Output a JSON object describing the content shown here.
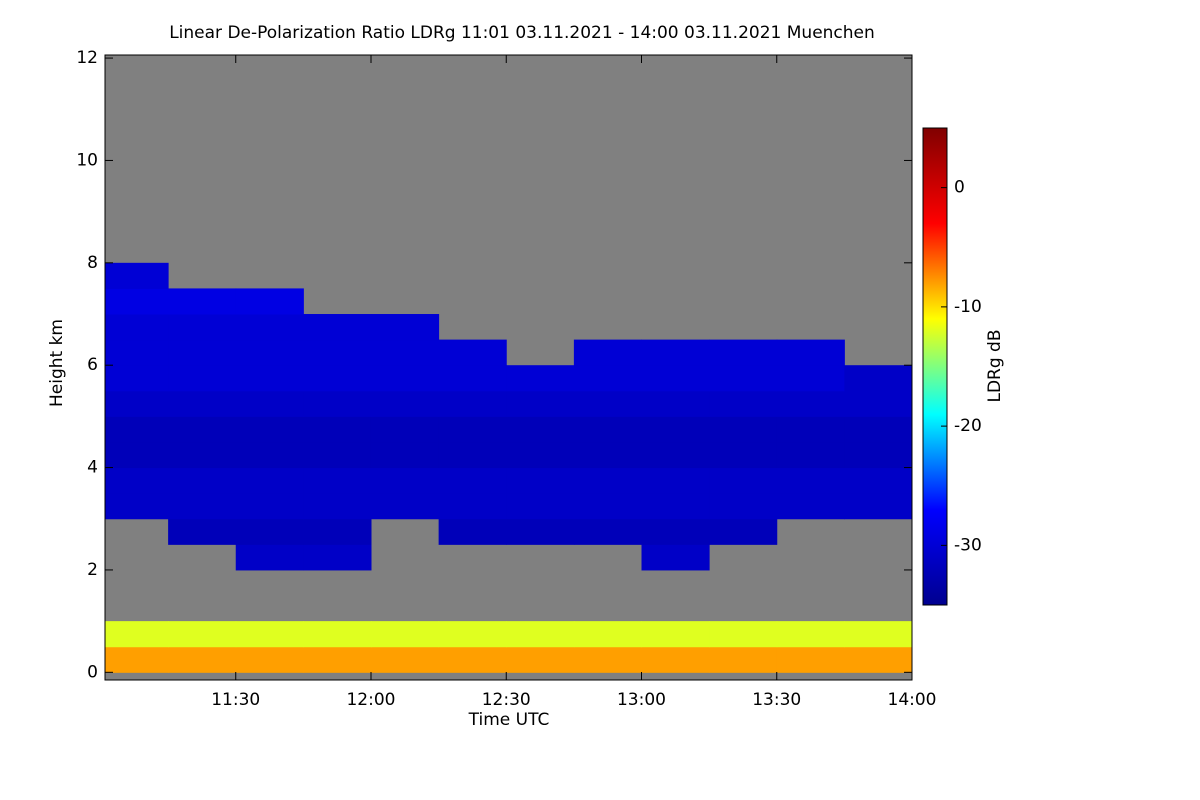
{
  "chart_data": {
    "type": "heatmap",
    "title": "Linear De-Polarization Ratio LDRg   11:01 03.11.2021 - 14:00 03.11.2021 Muenchen",
    "x_label": "Time UTC",
    "y_label": "Height km",
    "colorbar_label": "LDRg dB",
    "xlim": [
      661,
      840
    ],
    "xticks": [
      {
        "value": 690,
        "label": "11:30"
      },
      {
        "value": 720,
        "label": "12:00"
      },
      {
        "value": 750,
        "label": "12:30"
      },
      {
        "value": 780,
        "label": "13:00"
      },
      {
        "value": 810,
        "label": "13:30"
      },
      {
        "value": 840,
        "label": "14:00"
      }
    ],
    "ylim": [
      -0.15,
      12.06
    ],
    "yticks": [
      0,
      2,
      4,
      6,
      8,
      10,
      12
    ],
    "zlim": [
      -35,
      5
    ],
    "zticks": [
      -30,
      -20,
      -10,
      0
    ],
    "colormap": [
      "#00008f",
      "#0000ff",
      "#00ffff",
      "#ffff00",
      "#ff0000",
      "#800000"
    ],
    "missing_color": "#808080",
    "x_edges": [
      661,
      675,
      690,
      705,
      720,
      735,
      750,
      765,
      780,
      795,
      810,
      825,
      840
    ],
    "y_edges": [
      0,
      0.5,
      1,
      1.5,
      2,
      2.5,
      3,
      3.5,
      4,
      4.5,
      5,
      5.5,
      6,
      6.5,
      7,
      7.5,
      8,
      8.5
    ],
    "z": [
      [
        -8,
        -8,
        -8,
        -8,
        -8,
        -8,
        -8,
        -8,
        -8,
        -8,
        -8,
        -8
      ],
      [
        -12,
        -12,
        -12,
        -12,
        -12,
        -12,
        -12,
        -12,
        -12,
        -12,
        -12,
        -12
      ],
      [
        null,
        null,
        null,
        null,
        null,
        null,
        null,
        null,
        null,
        null,
        null,
        null
      ],
      [
        null,
        null,
        null,
        null,
        null,
        null,
        null,
        null,
        null,
        null,
        null,
        null
      ],
      [
        null,
        null,
        -31,
        -31,
        null,
        null,
        null,
        null,
        -31,
        null,
        null,
        null
      ],
      [
        null,
        -32,
        -32,
        -32,
        null,
        -32,
        -32,
        -32,
        -32,
        -32,
        null,
        null
      ],
      [
        -31,
        -31,
        -31,
        -31,
        -31,
        -31,
        -31,
        -31,
        -31,
        -31,
        -31,
        -31
      ],
      [
        -31,
        -31,
        -31,
        -31,
        -31,
        -31,
        -31,
        -31,
        -31,
        -31,
        -31,
        -31
      ],
      [
        -32,
        -32,
        -32,
        -32,
        -32,
        -32,
        -32,
        -32,
        -32,
        -32,
        -32,
        -32
      ],
      [
        -32,
        -32,
        -32,
        -32,
        -32,
        -32,
        -32,
        -32,
        -32,
        -32,
        -32,
        -32
      ],
      [
        -31,
        -31,
        -31,
        -31,
        -31,
        -31,
        -31,
        -31,
        -31,
        -31,
        -31,
        -31
      ],
      [
        -30,
        -30,
        -30,
        -30,
        -30,
        -30,
        -30,
        -30,
        -30,
        -30,
        -30,
        -31
      ],
      [
        -30,
        -30,
        -30,
        -30,
        -30,
        -30,
        null,
        -30,
        -30,
        -30,
        -30,
        null
      ],
      [
        -30,
        -30,
        -30,
        -30,
        -30,
        null,
        null,
        null,
        null,
        null,
        null,
        null
      ],
      [
        -29,
        -29,
        -29,
        null,
        null,
        null,
        null,
        null,
        null,
        null,
        null,
        null
      ],
      [
        -30,
        null,
        null,
        null,
        null,
        null,
        null,
        null,
        null,
        null,
        null,
        null
      ],
      [
        null,
        null,
        null,
        null,
        null,
        null,
        null,
        null,
        null,
        null,
        null,
        null
      ]
    ]
  }
}
